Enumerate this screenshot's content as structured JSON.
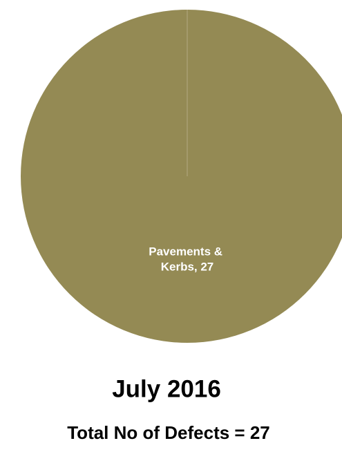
{
  "chart_data": {
    "type": "pie",
    "title": "July 2016",
    "subtitle": "Total No of Defects = 27",
    "values": [
      27
    ],
    "value_labels": [
      "Pavements & Kerbs, 27"
    ],
    "colors": [
      "#948a54"
    ]
  }
}
